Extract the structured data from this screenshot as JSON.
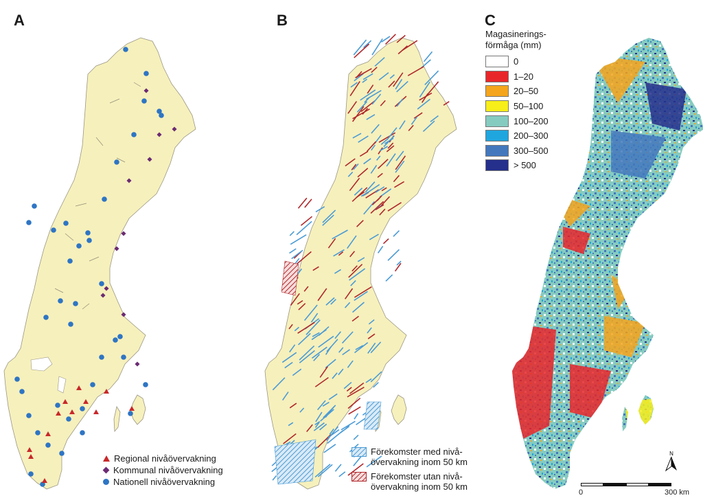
{
  "panels": {
    "a": {
      "letter": "A",
      "legend": [
        {
          "symbol": "triangle",
          "color": "#c8282a",
          "label": "Regional nivåövervakning"
        },
        {
          "symbol": "diamond",
          "color": "#6b2b73",
          "label": "Kommunal nivåövervakning"
        },
        {
          "symbol": "dot",
          "color": "#2e75c4",
          "label": "Nationell nivåövervakning"
        }
      ]
    },
    "b": {
      "letter": "B",
      "legend": [
        {
          "color": "#4a9bd6",
          "label_line1": "Förekomster med nivå-",
          "label_line2": "övervakning inom 50 km"
        },
        {
          "color": "#b0282c",
          "label_line1": "Förekomster utan nivå-",
          "label_line2": "övervakning inom 50 km"
        }
      ]
    },
    "c": {
      "letter": "C",
      "legend_title_line1": "Magasinerings-",
      "legend_title_line2": "förmåga (mm)",
      "classes": [
        {
          "label": "0",
          "color": "#ffffff"
        },
        {
          "label": "1–20",
          "color": "#e8262a"
        },
        {
          "label": "20–50",
          "color": "#f4a51c"
        },
        {
          "label": "50–100",
          "color": "#f7ee1a"
        },
        {
          "label": "100–200",
          "color": "#86cbc0"
        },
        {
          "label": "200–300",
          "color": "#1fa6de"
        },
        {
          "label": "300–500",
          "color": "#4378bd"
        },
        {
          "label": "> 500",
          "color": "#252f8c"
        }
      ],
      "scale_start": "0",
      "scale_end": "300 km",
      "north_label": "N"
    }
  },
  "colors": {
    "land": "#f6f0bc",
    "outline": "#9a9684"
  }
}
